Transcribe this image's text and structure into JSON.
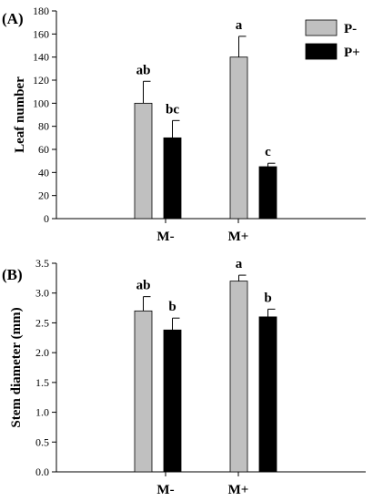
{
  "chart_data": [
    {
      "type": "bar",
      "panel_label": "(A)",
      "categories": [
        "M-",
        "M+"
      ],
      "ylabel": "Leaf number",
      "xlabel": "",
      "ylim": [
        0,
        180
      ],
      "yticks": [
        0,
        20,
        40,
        60,
        80,
        100,
        120,
        140,
        160,
        180
      ],
      "grid": false,
      "legend_position": "top-right",
      "series": [
        {
          "name": "P-",
          "color": "#c0c0c0",
          "values": [
            100,
            140
          ],
          "errors": [
            19,
            18
          ],
          "labels": [
            "ab",
            "a"
          ]
        },
        {
          "name": "P+",
          "color": "#000000",
          "values": [
            70,
            45
          ],
          "errors": [
            15,
            3
          ],
          "labels": [
            "bc",
            "c"
          ]
        }
      ]
    },
    {
      "type": "bar",
      "panel_label": "(B)",
      "categories": [
        "M-",
        "M+"
      ],
      "ylabel": "Stem diameter (mm)",
      "xlabel": "",
      "ylim": [
        0,
        3.5
      ],
      "yticks": [
        0.0,
        0.5,
        1.0,
        1.5,
        2.0,
        2.5,
        3.0,
        3.5
      ],
      "grid": false,
      "series": [
        {
          "name": "P-",
          "color": "#c0c0c0",
          "values": [
            2.7,
            3.2
          ],
          "errors": [
            0.24,
            0.1
          ],
          "labels": [
            "ab",
            "a"
          ]
        },
        {
          "name": "P+",
          "color": "#000000",
          "values": [
            2.38,
            2.6
          ],
          "errors": [
            0.2,
            0.13
          ],
          "labels": [
            "b",
            "b"
          ]
        }
      ]
    }
  ]
}
